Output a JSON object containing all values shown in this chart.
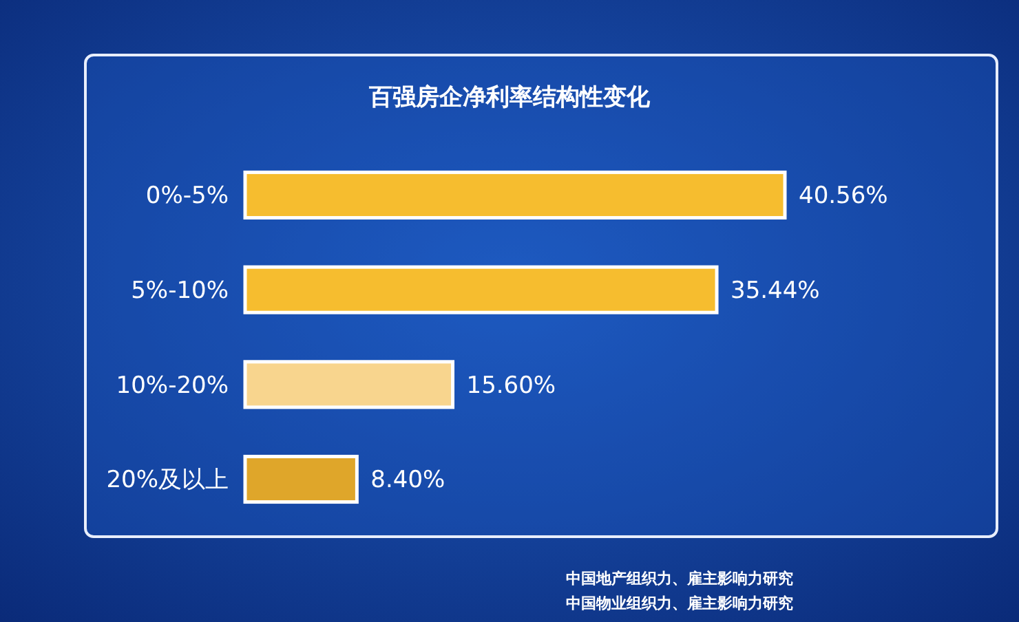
{
  "chart_data": {
    "type": "bar",
    "orientation": "horizontal",
    "title": "百强房企净利率结构性变化",
    "categories": [
      "0%-5%",
      "5%-10%",
      "10%-20%",
      "20%及以上"
    ],
    "values": [
      40.56,
      35.44,
      15.6,
      8.4
    ],
    "colors": [
      "#f6bd2f",
      "#f6bd2f",
      "#f8d58e",
      "#dfa62a"
    ],
    "value_labels": [
      "40.56%",
      "35.44%",
      "15.60%",
      "8.40%"
    ],
    "annotations": [
      "中国地产组织力、雇主影响力研究",
      "中国物业组织力、雇主影响力研究"
    ]
  }
}
